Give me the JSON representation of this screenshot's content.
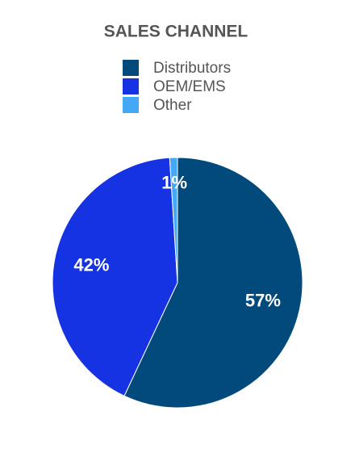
{
  "chart_data": {
    "type": "pie",
    "title": "SALES CHANNEL",
    "categories": [
      "Distributors",
      "OEM/EMS",
      "Other"
    ],
    "values": [
      57,
      42,
      1
    ],
    "value_labels": [
      "57%",
      "42%",
      "1%"
    ],
    "colors": [
      "#034a7c",
      "#1533e2",
      "#44a8f4"
    ],
    "legend": "top"
  }
}
